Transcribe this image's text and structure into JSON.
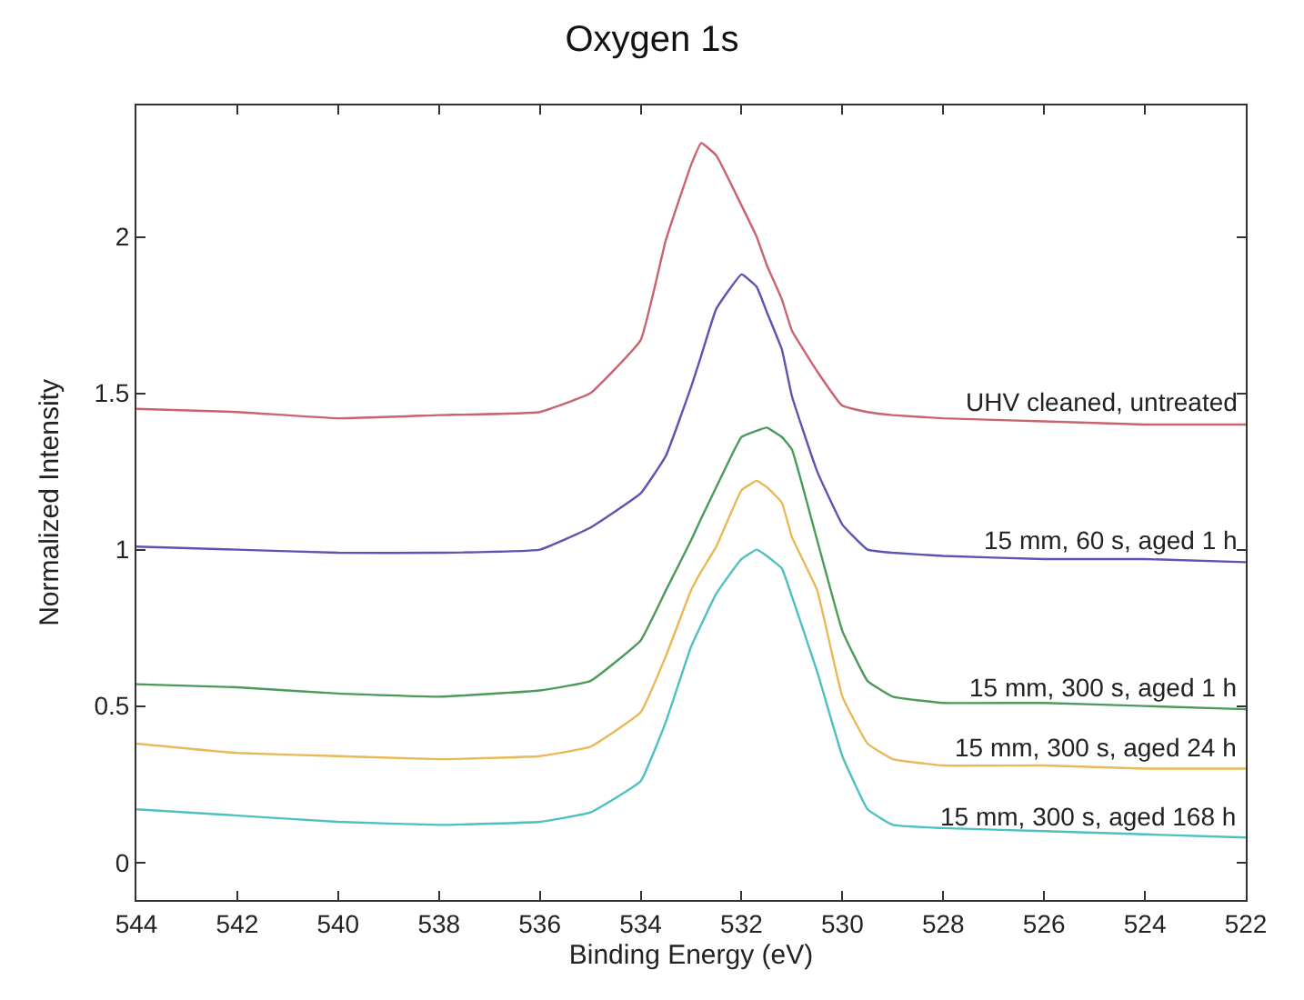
{
  "chart_data": {
    "type": "line",
    "title": "Oxygen 1s",
    "xlabel": "Binding Energy (eV)",
    "ylabel": "Normalized Intensity",
    "x": [
      544,
      542,
      540,
      538,
      536,
      535,
      534,
      533.5,
      533,
      532.8,
      532.5,
      532,
      531.7,
      531.5,
      531.2,
      531,
      530.5,
      530,
      529.5,
      529,
      528,
      526,
      524,
      522
    ],
    "series": [
      {
        "name": "UHV cleaned, untreated",
        "color": "#c8636f",
        "values": [
          1.45,
          1.44,
          1.42,
          1.43,
          1.44,
          1.5,
          1.67,
          1.99,
          2.23,
          2.3,
          2.26,
          2.1,
          2.0,
          1.91,
          1.8,
          1.7,
          1.57,
          1.46,
          1.44,
          1.43,
          1.42,
          1.41,
          1.4,
          1.4
        ]
      },
      {
        "name": "15 mm, 60 s, aged 1 h",
        "color": "#5a55b0",
        "values": [
          1.01,
          1.0,
          0.99,
          0.99,
          1.0,
          1.07,
          1.18,
          1.3,
          1.52,
          1.62,
          1.77,
          1.88,
          1.84,
          1.76,
          1.64,
          1.49,
          1.25,
          1.08,
          1.0,
          0.99,
          0.98,
          0.97,
          0.97,
          0.96
        ]
      },
      {
        "name": "15 mm, 300 s, aged 1 h",
        "color": "#4c9a5a",
        "values": [
          0.57,
          0.56,
          0.54,
          0.53,
          0.55,
          0.58,
          0.71,
          0.87,
          1.03,
          1.1,
          1.2,
          1.36,
          1.38,
          1.39,
          1.36,
          1.32,
          1.03,
          0.74,
          0.58,
          0.53,
          0.51,
          0.51,
          0.5,
          0.49
        ]
      },
      {
        "name": "15 mm, 300 s, aged 24 h",
        "color": "#e8b85a",
        "values": [
          0.38,
          0.35,
          0.34,
          0.33,
          0.34,
          0.37,
          0.48,
          0.66,
          0.87,
          0.93,
          1.01,
          1.19,
          1.22,
          1.2,
          1.15,
          1.04,
          0.87,
          0.53,
          0.38,
          0.33,
          0.31,
          0.31,
          0.3,
          0.3
        ]
      },
      {
        "name": "15 mm, 300 s, aged 168 h",
        "color": "#4fc0c0",
        "values": [
          0.17,
          0.15,
          0.13,
          0.12,
          0.13,
          0.16,
          0.26,
          0.45,
          0.69,
          0.76,
          0.86,
          0.97,
          1.0,
          0.98,
          0.94,
          0.85,
          0.61,
          0.34,
          0.17,
          0.12,
          0.11,
          0.1,
          0.09,
          0.08
        ]
      }
    ],
    "xlim": [
      544,
      522
    ],
    "xticks": [
      544,
      542,
      540,
      538,
      536,
      534,
      532,
      530,
      528,
      526,
      524,
      522
    ],
    "ylim": [
      -0.12,
      2.42
    ],
    "yticks": [
      0,
      0.5,
      1,
      1.5,
      2
    ],
    "legend": false,
    "marker": "none",
    "line_style": "solid"
  }
}
